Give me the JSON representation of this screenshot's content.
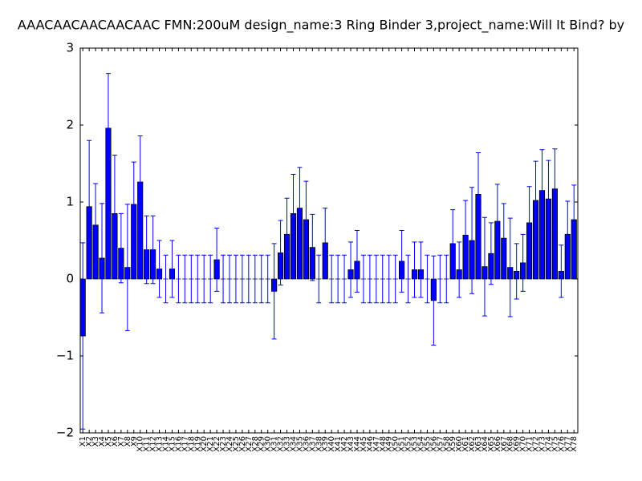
{
  "chart_data": {
    "type": "bar",
    "title": "AAACAACAACAACAAC  FMN:200uM  design_name:3 Ring Binder 3,project_name:Will It Bind? by",
    "categories": [
      "X1",
      "X2",
      "X3",
      "X4",
      "X5",
      "X6",
      "X7",
      "X8",
      "X9",
      "X10",
      "X11",
      "X12",
      "X13",
      "X14",
      "X15",
      "X16",
      "X17",
      "X18",
      "X19",
      "X20",
      "X21",
      "X22",
      "X23",
      "X24",
      "X25",
      "X26",
      "X27",
      "X28",
      "X29",
      "X30",
      "X31",
      "X32",
      "X33",
      "X34",
      "X35",
      "X36",
      "X37",
      "X38",
      "X39",
      "X40",
      "X41",
      "X42",
      "X43",
      "X44",
      "X45",
      "X46",
      "X47",
      "X48",
      "X49",
      "X50",
      "X51",
      "X52",
      "X53",
      "X54",
      "X55",
      "X56",
      "X57",
      "X58",
      "X59",
      "X60",
      "X61",
      "X62",
      "X63",
      "X64",
      "X65",
      "X66",
      "X67",
      "X68",
      "X69",
      "X70",
      "X71",
      "X72",
      "X73",
      "X74",
      "X75",
      "X76",
      "X77",
      "X78"
    ],
    "series": [
      {
        "color": "#0000ff",
        "error_color": "#0000ff",
        "values": [
          -0.74,
          0.94,
          0.7,
          0.27,
          1.96,
          0.85,
          0.4,
          0.15,
          0.97,
          1.26,
          0.38,
          0.38,
          0.13,
          0,
          0.13,
          0,
          0,
          0,
          0,
          0,
          0,
          0.25,
          0,
          0,
          0,
          0,
          0,
          0,
          0,
          0,
          -0.16,
          0.34,
          0.58,
          0.85,
          0.92,
          0.77,
          0.41,
          0,
          0.47,
          0,
          0,
          0,
          0.12,
          0.23,
          0,
          0,
          0,
          0,
          0,
          0,
          0.23,
          0,
          0.12,
          0.12,
          0,
          -0.28,
          0,
          0,
          0.46,
          0.12,
          0.57,
          0.5,
          1.1,
          0.16,
          0.33,
          0.75,
          0.53,
          0.15,
          0.1,
          0.21,
          0.73,
          1.02,
          1.15,
          1.04,
          1.17,
          0.1,
          0.58,
          0.77
        ],
        "errors": [
          1.21,
          0.86,
          0.54,
          0.71,
          0.71,
          0.76,
          0.45,
          0.82,
          0.55,
          0.6,
          0.44,
          0.44,
          0.37,
          0.31,
          0.37,
          0.31,
          0.31,
          0.31,
          0.31,
          0.31,
          0.31,
          0.41,
          0.31,
          0.31,
          0.31,
          0.31,
          0.31,
          0.31,
          0.31,
          0.31,
          0.62,
          0.42,
          0.47,
          0.51,
          0.53,
          0.5,
          0.43,
          0.31,
          0.45,
          0.31,
          0.31,
          0.31,
          0.36,
          0.4,
          0.31,
          0.31,
          0.31,
          0.31,
          0.31,
          0.31,
          0.4,
          0.31,
          0.36,
          0.36,
          0.31,
          0.58,
          0.31,
          0.31,
          0.44,
          0.36,
          0.45,
          0.69,
          0.54,
          0.64,
          0.4,
          0.48,
          0.45,
          0.64,
          0.36,
          0.37,
          0.47,
          0.51,
          0.53,
          0.5,
          0.52,
          0.34,
          0.43,
          0.45
        ]
      }
    ],
    "ylim": [
      -2,
      3
    ],
    "yticks": [
      {
        "value": -2,
        "label": "−2"
      },
      {
        "value": -1,
        "label": "−1"
      },
      0,
      1,
      2,
      3
    ]
  }
}
